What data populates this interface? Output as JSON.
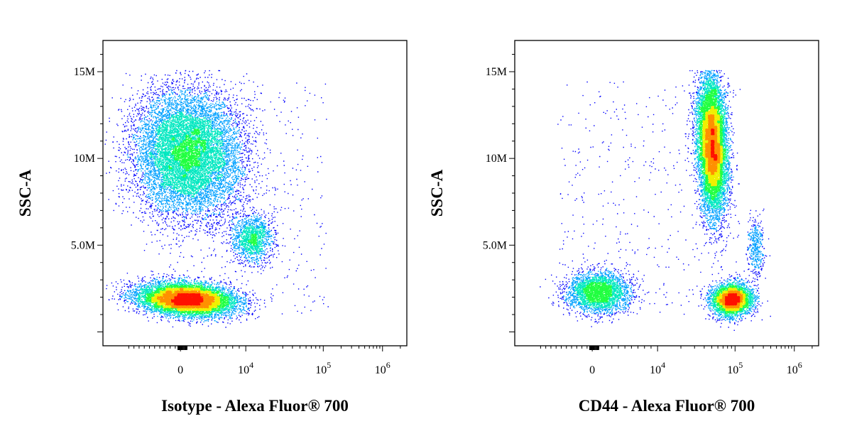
{
  "chart_data": [
    {
      "type": "scatter",
      "subtype": "flow-cytometry-density-dot-plot",
      "xlabel": "Isotype - Alexa Fluor® 700",
      "ylabel": "SSC-A",
      "x_scale": "biexponential",
      "x_ticks": [
        {
          "value": 0,
          "base": "0",
          "exp": ""
        },
        {
          "value": 10000,
          "base": "10",
          "exp": "4"
        },
        {
          "value": 100000,
          "base": "10",
          "exp": "5"
        },
        {
          "value": 1000000,
          "base": "10",
          "exp": "6"
        }
      ],
      "y_ticks": [
        {
          "value": 5000000,
          "label": "5.0M"
        },
        {
          "value": 10000000,
          "label": "10M"
        },
        {
          "value": 15000000,
          "label": "15M"
        }
      ],
      "ylim": [
        -800000,
        16800000
      ],
      "grid": false,
      "density_colors": [
        "#0000ff",
        "#00a0ff",
        "#00e8c0",
        "#20ff40",
        "#f0f000",
        "#ff9000",
        "#ff1000"
      ],
      "populations": [
        {
          "x": 1200,
          "y": 10300000,
          "count": 11000
        },
        {
          "x": 900,
          "y": 1900000,
          "count": 9500
        },
        {
          "x": 12000,
          "y": 5400000,
          "count": 1500
        }
      ]
    },
    {
      "type": "scatter",
      "subtype": "flow-cytometry-density-dot-plot",
      "xlabel": "CD44 - Alexa Fluor® 700",
      "ylabel": "SSC-A",
      "x_scale": "biexponential",
      "x_ticks": [
        {
          "value": 0,
          "base": "0",
          "exp": ""
        },
        {
          "value": 10000,
          "base": "10",
          "exp": "4"
        },
        {
          "value": 100000,
          "base": "10",
          "exp": "5"
        },
        {
          "value": 1000000,
          "base": "10",
          "exp": "6"
        }
      ],
      "y_ticks": [
        {
          "value": 5000000,
          "label": "5.0M"
        },
        {
          "value": 10000000,
          "label": "10M"
        },
        {
          "value": 15000000,
          "label": "15M"
        }
      ],
      "ylim": [
        -800000,
        16800000
      ],
      "grid": false,
      "density_colors": [
        "#0000ff",
        "#00a0ff",
        "#00e8c0",
        "#20ff40",
        "#f0f000",
        "#ff9000",
        "#ff1000"
      ],
      "populations": [
        {
          "x": 50000,
          "y": 10800000,
          "count": 10500
        },
        {
          "x": 900,
          "y": 2300000,
          "count": 3200
        },
        {
          "x": 90000,
          "y": 1900000,
          "count": 4200
        },
        {
          "x": 220000,
          "y": 5000000,
          "count": 400
        }
      ]
    }
  ]
}
